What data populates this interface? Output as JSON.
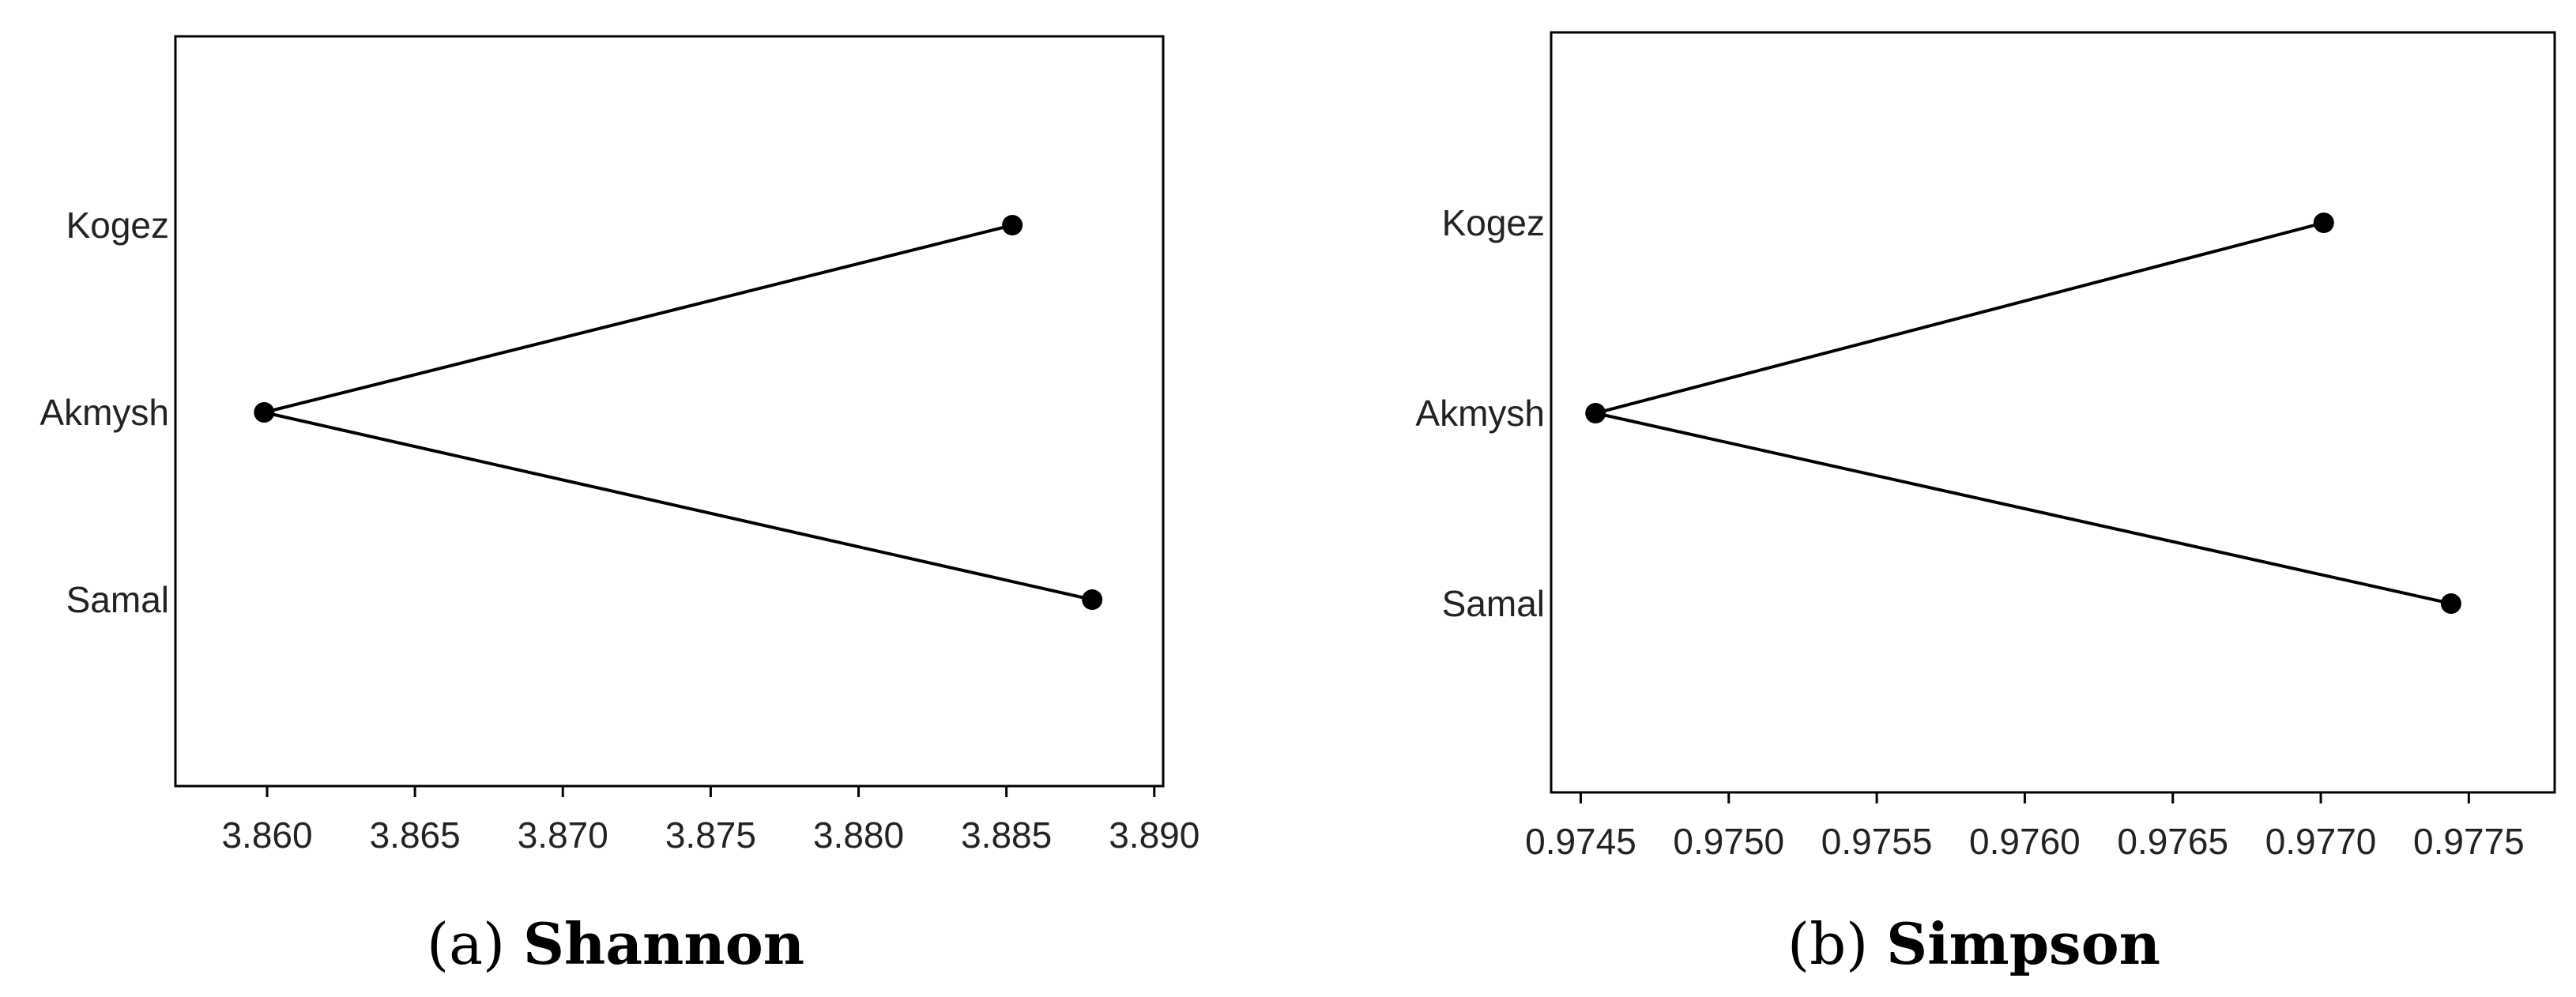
{
  "captions": {
    "a_label": "(a)",
    "a_name": "Shannon",
    "b_label": "(b)",
    "b_name": "Simpson"
  },
  "chart_data": [
    {
      "type": "line",
      "panel": "(a) Shannon",
      "categories": [
        "Kogez",
        "Akmysh",
        "Samal"
      ],
      "values": [
        3.8852,
        3.8599,
        3.8879
      ],
      "xticks": [
        "3.860",
        "3.865",
        "3.870",
        "3.875",
        "3.880",
        "3.885",
        "3.890"
      ],
      "xlim": [
        3.8569,
        3.8903
      ],
      "grid": false,
      "legend": "none"
    },
    {
      "type": "line",
      "panel": "(b) Simpson",
      "categories": [
        "Kogez",
        "Akmysh",
        "Samal"
      ],
      "values": [
        0.97701,
        0.97455,
        0.97744
      ],
      "xticks": [
        "0.9745",
        "0.9750",
        "0.9755",
        "0.9760",
        "0.9765",
        "0.9770",
        "0.9775"
      ],
      "xlim": [
        0.9744,
        0.97779
      ],
      "grid": false,
      "legend": "none"
    }
  ]
}
